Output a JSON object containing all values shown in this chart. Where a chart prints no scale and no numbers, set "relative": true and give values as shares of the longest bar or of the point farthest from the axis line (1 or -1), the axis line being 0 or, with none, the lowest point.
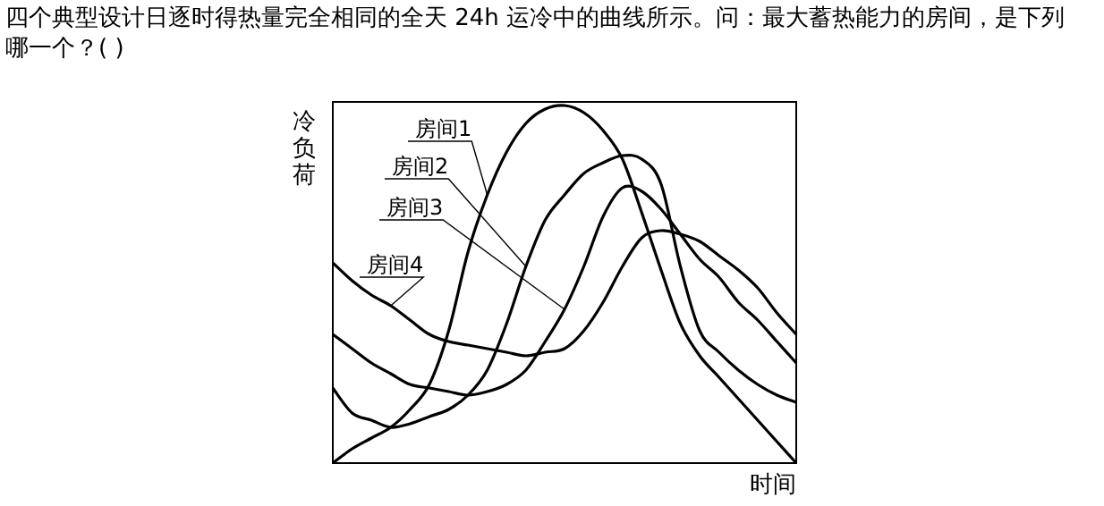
{
  "chart_data": {
    "type": "line",
    "relative": true,
    "title": "四个典型设计日逐时得热量完全相同的全天 24h 运冷中的曲线所示。问：最大蓄热能力的房间，是下列哪一个？(   )",
    "xlabel": "时间",
    "ylabel": "冷负荷",
    "legend": false,
    "categories": [
      null,
      null,
      null,
      null,
      null,
      null,
      null,
      null,
      null,
      null,
      null,
      null,
      null,
      null,
      null,
      null,
      null,
      null,
      null,
      null,
      null,
      null,
      null,
      null,
      null
    ],
    "series": [
      {
        "name": "房间1",
        "color": "#000000",
        "values": [
          0,
          0.04,
          0.07,
          0.1,
          0.15,
          0.22,
          0.37,
          0.59,
          0.75,
          0.87,
          0.95,
          0.99,
          1.0,
          0.98,
          0.93,
          0.85,
          0.7,
          0.54,
          0.39,
          0.3,
          0.24,
          0.18,
          0.12,
          0.06,
          0
        ]
      },
      {
        "name": "房间2",
        "color": "#000000",
        "values": [
          0.21,
          0.14,
          0.12,
          0.1,
          0.11,
          0.13,
          0.15,
          0.19,
          0.26,
          0.39,
          0.55,
          0.68,
          0.75,
          0.81,
          0.84,
          0.86,
          0.85,
          0.78,
          0.55,
          0.37,
          0.31,
          0.26,
          0.22,
          0.19,
          0.17
        ]
      },
      {
        "name": "房间3",
        "color": "#000000",
        "values": [
          0.36,
          0.32,
          0.28,
          0.25,
          0.22,
          0.21,
          0.2,
          0.19,
          0.2,
          0.22,
          0.26,
          0.34,
          0.43,
          0.55,
          0.69,
          0.77,
          0.76,
          0.71,
          0.64,
          0.57,
          0.52,
          0.45,
          0.4,
          0.34,
          0.28
        ]
      },
      {
        "name": "房间4",
        "color": "#000000",
        "values": [
          0.56,
          0.51,
          0.47,
          0.44,
          0.4,
          0.36,
          0.34,
          0.33,
          0.32,
          0.31,
          0.3,
          0.31,
          0.32,
          0.37,
          0.45,
          0.55,
          0.63,
          0.65,
          0.64,
          0.62,
          0.58,
          0.54,
          0.49,
          0.42,
          0.36
        ]
      }
    ]
  }
}
